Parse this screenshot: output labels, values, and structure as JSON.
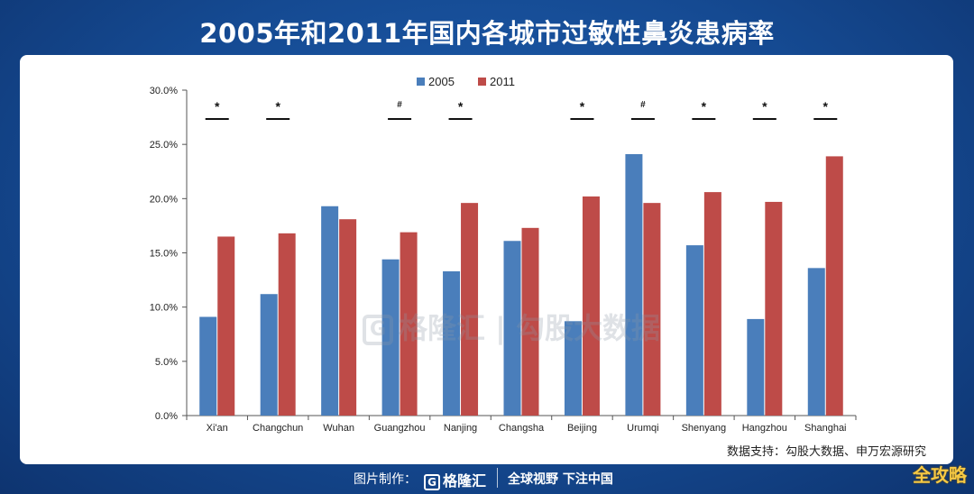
{
  "page": {
    "title": "2005年和2011年国内各城市过敏性鼻炎患病率",
    "source": "数据支持：勾股大数据、申万宏源研究",
    "watermark": "格隆汇 | 勾股大数据",
    "footer_made": "图片制作：",
    "footer_logo": "格隆汇",
    "footer_logo_glyph": "G",
    "footer_slogan": "全球视野 下注中国",
    "brand": "全攻略"
  },
  "chart_data": {
    "type": "bar",
    "categories": [
      "Xi'an",
      "Changchun",
      "Wuhan",
      "Guangzhou",
      "Nanjing",
      "Changsha",
      "Beijing",
      "Urumqi",
      "Shenyang",
      "Hangzhou",
      "Shanghai"
    ],
    "series": [
      {
        "name": "2005",
        "color": "#4a7ebb",
        "values": [
          9.1,
          11.2,
          19.3,
          14.4,
          13.3,
          16.1,
          8.7,
          24.1,
          15.7,
          8.9,
          13.6
        ]
      },
      {
        "name": "2011",
        "color": "#be4b48",
        "values": [
          16.5,
          16.8,
          18.1,
          16.9,
          19.6,
          17.3,
          20.2,
          19.6,
          20.6,
          19.7,
          23.9
        ]
      }
    ],
    "significance": [
      "*",
      "*",
      "",
      "#",
      "*",
      "",
      "*",
      "#",
      "*",
      "*",
      "*"
    ],
    "yticks": [
      "0.0%",
      "5.0%",
      "10.0%",
      "15.0%",
      "20.0%",
      "25.0%",
      "30.0%"
    ],
    "ylim": [
      0,
      30
    ],
    "legend_position": "top-center",
    "grid": false
  }
}
